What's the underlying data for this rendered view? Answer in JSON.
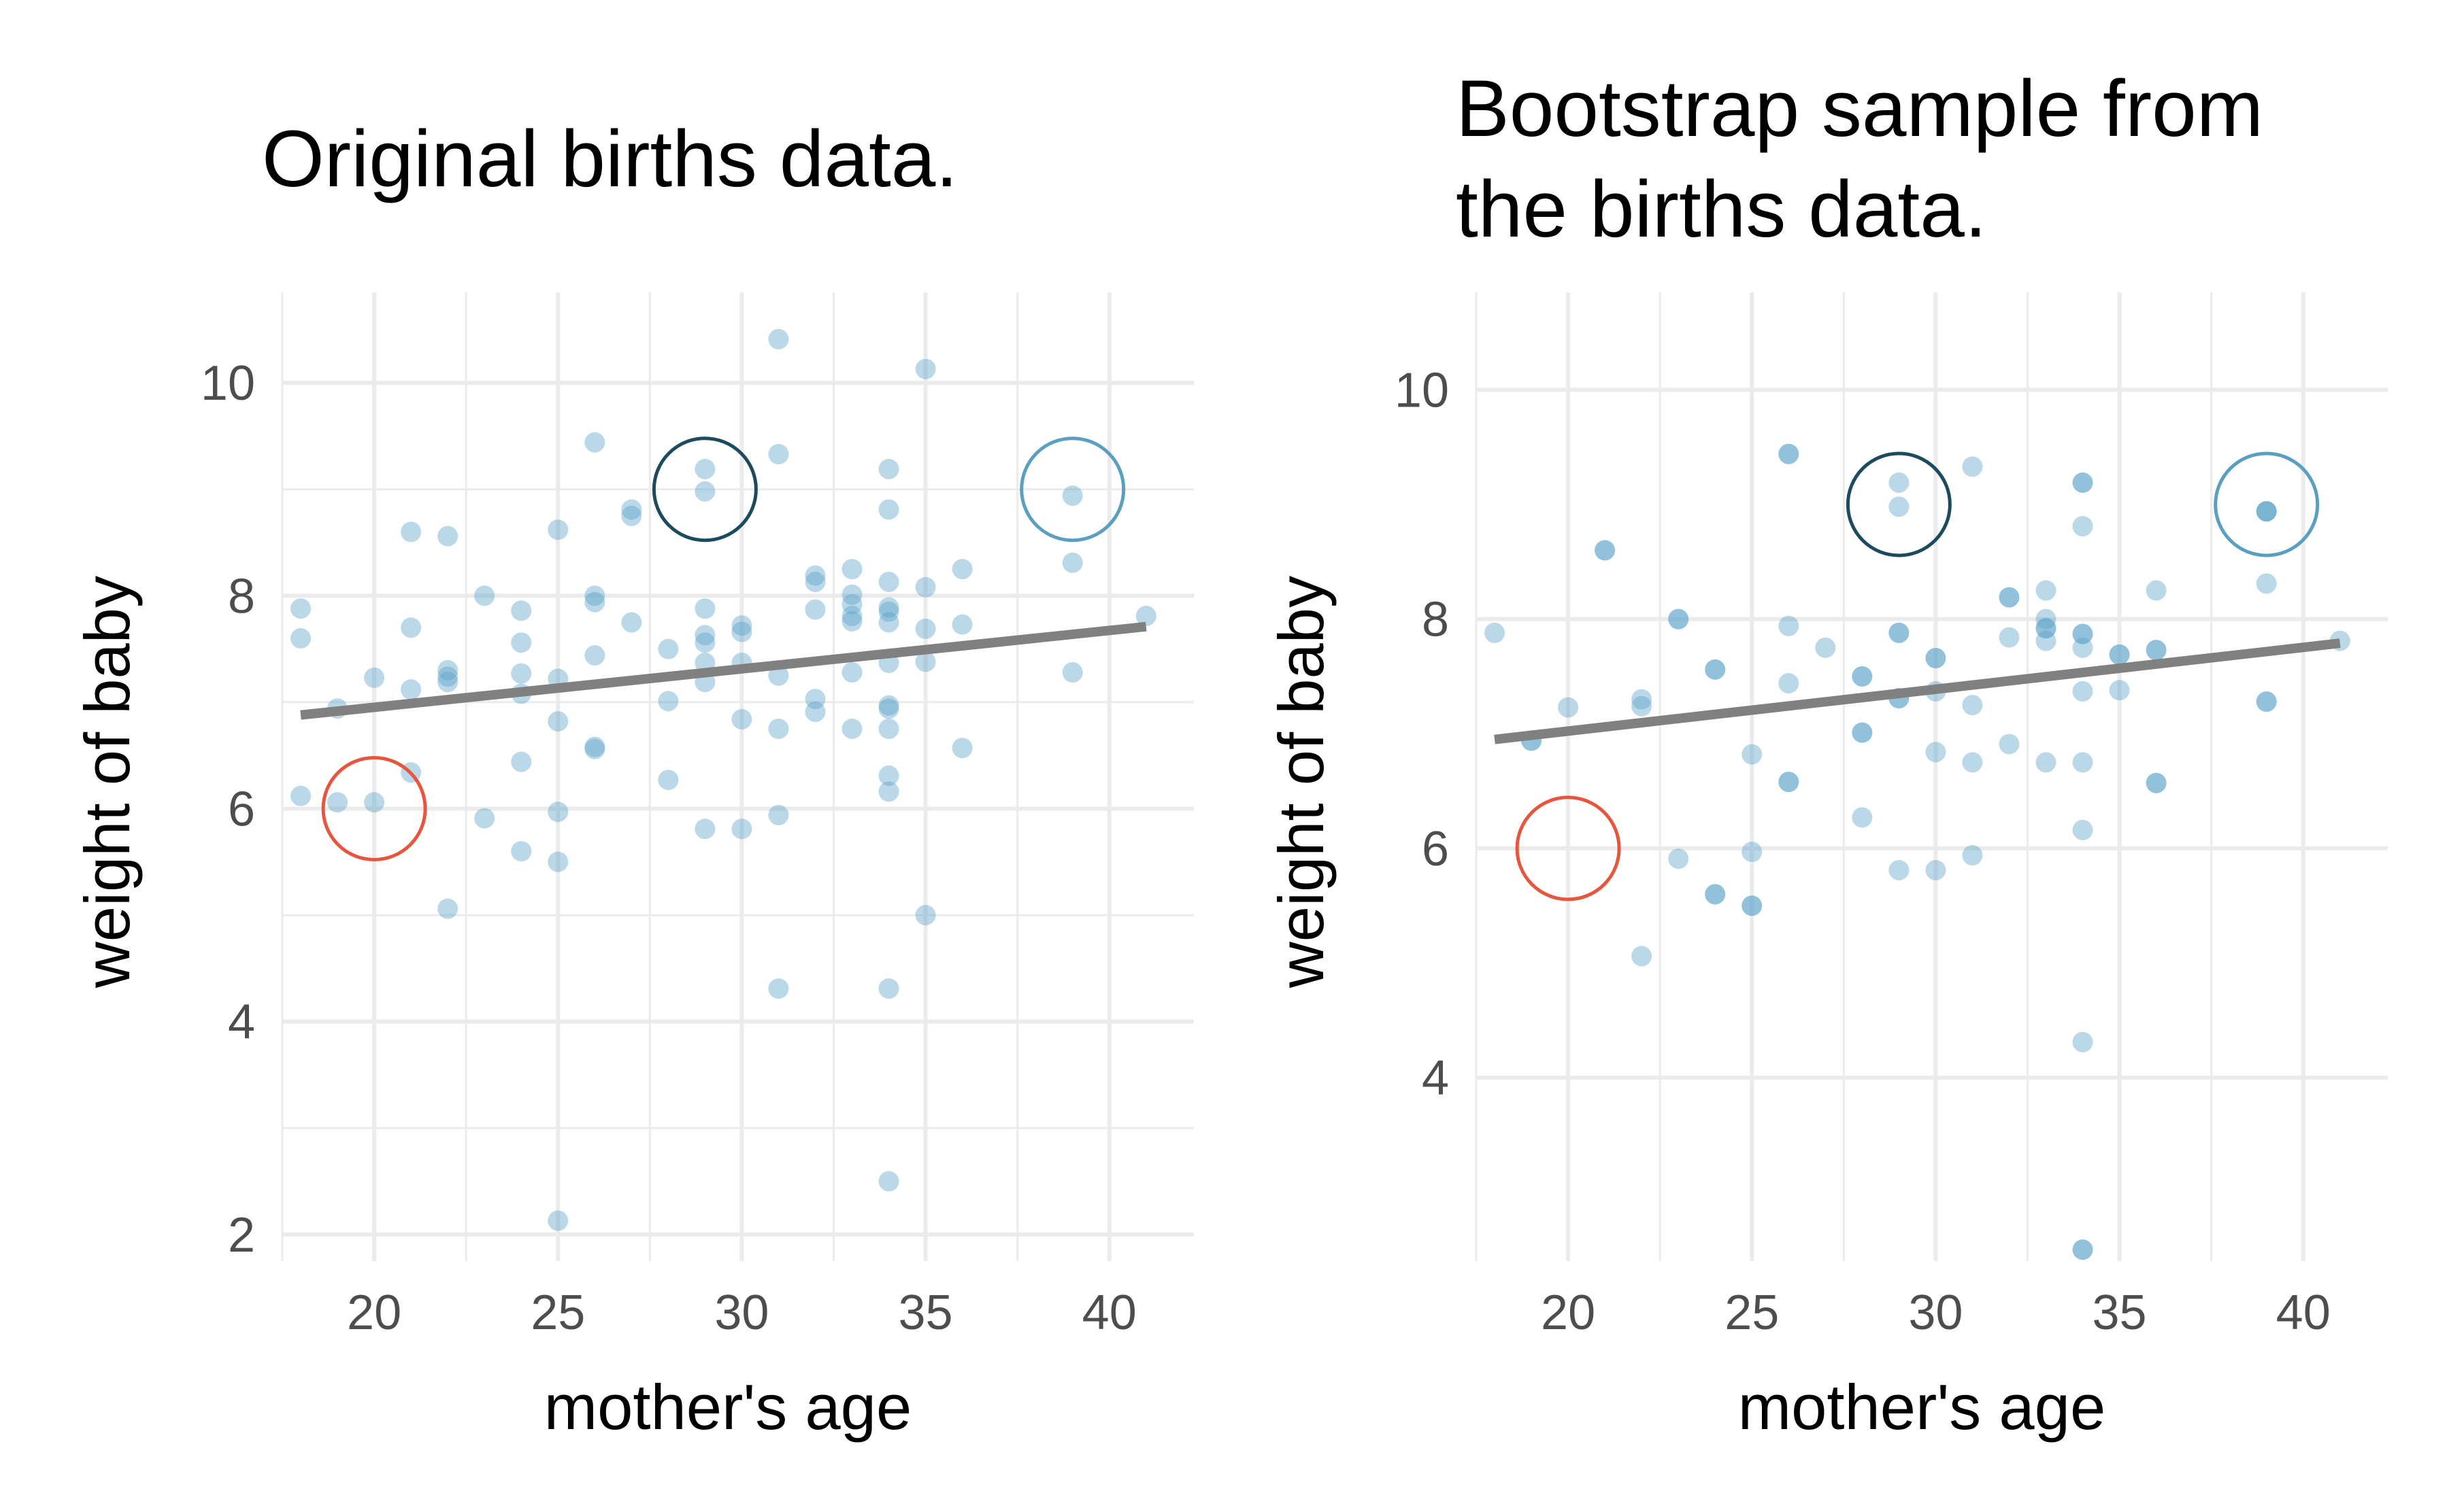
{
  "chart_data": [
    {
      "type": "scatter",
      "title": "Original births data.",
      "xlabel": "mother's age",
      "ylabel": "weight of baby",
      "xlim": [
        17.5,
        42.3
      ],
      "ylim": [
        1.75,
        10.85
      ],
      "xticks": [
        20,
        25,
        30,
        35,
        40
      ],
      "yticks": [
        2,
        4,
        6,
        8,
        10
      ],
      "grid": true,
      "legend": "none",
      "colors": {
        "points": "#5ba3c7",
        "fit_line": "#808080",
        "grid": "#ebebeb"
      },
      "points": [
        [
          18,
          7.88
        ],
        [
          18,
          7.6
        ],
        [
          18,
          6.12
        ],
        [
          19,
          6.94
        ],
        [
          19,
          6.06
        ],
        [
          20,
          7.23
        ],
        [
          20,
          6.06
        ],
        [
          21,
          8.6
        ],
        [
          21,
          7.7
        ],
        [
          21,
          7.12
        ],
        [
          21,
          6.34
        ],
        [
          22,
          8.56
        ],
        [
          22,
          7.3
        ],
        [
          22,
          7.24
        ],
        [
          22,
          7.19
        ],
        [
          22,
          5.06
        ],
        [
          23,
          8.0
        ],
        [
          23,
          5.91
        ],
        [
          24,
          7.86
        ],
        [
          24,
          7.56
        ],
        [
          24,
          7.27
        ],
        [
          24,
          7.08
        ],
        [
          24,
          6.44
        ],
        [
          24,
          5.6
        ],
        [
          25,
          8.62
        ],
        [
          25,
          7.22
        ],
        [
          25,
          6.82
        ],
        [
          25,
          5.97
        ],
        [
          25,
          5.5
        ],
        [
          25,
          2.13
        ],
        [
          26,
          9.44
        ],
        [
          26,
          8.0
        ],
        [
          26,
          7.94
        ],
        [
          26,
          7.44
        ],
        [
          26,
          6.58
        ],
        [
          26,
          6.56
        ],
        [
          27,
          8.81
        ],
        [
          27,
          8.75
        ],
        [
          27,
          7.75
        ],
        [
          28,
          7.5
        ],
        [
          28,
          7.01
        ],
        [
          28,
          6.27
        ],
        [
          29,
          9.19
        ],
        [
          29,
          8.98
        ],
        [
          29,
          7.88
        ],
        [
          29,
          7.63
        ],
        [
          29,
          7.56
        ],
        [
          29,
          7.37
        ],
        [
          29,
          7.19
        ],
        [
          29,
          5.81
        ],
        [
          30,
          7.72
        ],
        [
          30,
          7.66
        ],
        [
          30,
          7.37
        ],
        [
          30,
          6.84
        ],
        [
          30,
          5.81
        ],
        [
          31,
          10.41
        ],
        [
          31,
          9.33
        ],
        [
          31,
          7.25
        ],
        [
          31,
          6.75
        ],
        [
          31,
          5.94
        ],
        [
          31,
          4.31
        ],
        [
          32,
          8.19
        ],
        [
          32,
          8.13
        ],
        [
          32,
          7.87
        ],
        [
          32,
          7.03
        ],
        [
          32,
          6.91
        ],
        [
          33,
          8.25
        ],
        [
          33,
          8.01
        ],
        [
          33,
          7.92
        ],
        [
          33,
          7.81
        ],
        [
          33,
          7.76
        ],
        [
          33,
          7.28
        ],
        [
          33,
          6.75
        ],
        [
          34,
          9.19
        ],
        [
          34,
          8.81
        ],
        [
          34,
          8.13
        ],
        [
          34,
          7.89
        ],
        [
          34,
          7.85
        ],
        [
          34,
          7.75
        ],
        [
          34,
          7.37
        ],
        [
          34,
          6.97
        ],
        [
          34,
          6.94
        ],
        [
          34,
          6.75
        ],
        [
          34,
          6.31
        ],
        [
          34,
          6.16
        ],
        [
          34,
          4.31
        ],
        [
          34,
          2.5
        ],
        [
          35,
          10.13
        ],
        [
          35,
          8.08
        ],
        [
          35,
          7.69
        ],
        [
          35,
          7.38
        ],
        [
          35,
          5.0
        ],
        [
          36,
          8.25
        ],
        [
          36,
          7.73
        ],
        [
          36,
          6.57
        ],
        [
          39,
          8.94
        ],
        [
          39,
          8.31
        ],
        [
          39,
          7.28
        ],
        [
          41,
          7.81
        ]
      ],
      "fit_line": {
        "x": [
          18,
          41
        ],
        "y": [
          6.88,
          7.71
        ]
      },
      "highlight_circles": [
        {
          "x": 20,
          "y": 6.0,
          "color": "#e8553f"
        },
        {
          "x": 29,
          "y": 9.0,
          "color": "#1c4a5e"
        },
        {
          "x": 39,
          "y": 9.0,
          "color": "#5a9fbf"
        }
      ]
    },
    {
      "type": "scatter",
      "title": "Bootstrap sample from the births data.",
      "title_lines": [
        "Bootstrap sample from",
        "the births data."
      ],
      "xlabel": "mother's age",
      "ylabel": "weight of baby",
      "xlim": [
        17.5,
        42.3
      ],
      "ylim": [
        2.4,
        10.85
      ],
      "xticks": [
        20,
        25,
        30,
        35,
        40
      ],
      "yticks": [
        4,
        6,
        8,
        10
      ],
      "grid": true,
      "legend": "none",
      "colors": {
        "points": "#5ba3c7",
        "fit_line": "#808080",
        "grid": "#ebebeb"
      },
      "points": [
        [
          18,
          7.88
        ],
        [
          19,
          6.94
        ],
        [
          19,
          6.94
        ],
        [
          20,
          7.23
        ],
        [
          21,
          8.6
        ],
        [
          21,
          8.6
        ],
        [
          22,
          7.3
        ],
        [
          22,
          7.24
        ],
        [
          22,
          5.06
        ],
        [
          23,
          8.0
        ],
        [
          23,
          8.0
        ],
        [
          23,
          5.91
        ],
        [
          24,
          7.56
        ],
        [
          24,
          7.56
        ],
        [
          24,
          5.6
        ],
        [
          24,
          5.6
        ],
        [
          25,
          6.82
        ],
        [
          25,
          5.97
        ],
        [
          25,
          5.5
        ],
        [
          25,
          5.5
        ],
        [
          26,
          9.44
        ],
        [
          26,
          9.44
        ],
        [
          26,
          7.94
        ],
        [
          26,
          7.44
        ],
        [
          26,
          6.58
        ],
        [
          26,
          6.58
        ],
        [
          27,
          7.75
        ],
        [
          28,
          7.5
        ],
        [
          28,
          7.5
        ],
        [
          28,
          7.01
        ],
        [
          28,
          7.01
        ],
        [
          28,
          6.27
        ],
        [
          29,
          9.19
        ],
        [
          29,
          8.98
        ],
        [
          29,
          7.88
        ],
        [
          29,
          7.88
        ],
        [
          29,
          7.31
        ],
        [
          29,
          7.31
        ],
        [
          29,
          5.81
        ],
        [
          30,
          7.66
        ],
        [
          30,
          7.66
        ],
        [
          30,
          7.37
        ],
        [
          30,
          6.84
        ],
        [
          30,
          5.81
        ],
        [
          31,
          9.33
        ],
        [
          31,
          7.25
        ],
        [
          31,
          6.75
        ],
        [
          31,
          5.94
        ],
        [
          32,
          8.19
        ],
        [
          32,
          8.19
        ],
        [
          32,
          7.84
        ],
        [
          32,
          6.91
        ],
        [
          33,
          8.25
        ],
        [
          33,
          8.0
        ],
        [
          33,
          7.92
        ],
        [
          33,
          7.92
        ],
        [
          33,
          7.81
        ],
        [
          33,
          6.75
        ],
        [
          34,
          9.19
        ],
        [
          34,
          9.19
        ],
        [
          34,
          8.81
        ],
        [
          34,
          7.87
        ],
        [
          34,
          7.87
        ],
        [
          34,
          7.75
        ],
        [
          34,
          7.37
        ],
        [
          34,
          6.75
        ],
        [
          34,
          6.16
        ],
        [
          34,
          4.31
        ],
        [
          34,
          2.5
        ],
        [
          34,
          2.5
        ],
        [
          35,
          7.69
        ],
        [
          35,
          7.69
        ],
        [
          35,
          7.38
        ],
        [
          36,
          8.25
        ],
        [
          36,
          7.73
        ],
        [
          36,
          7.73
        ],
        [
          36,
          6.57
        ],
        [
          36,
          6.57
        ],
        [
          39,
          8.94
        ],
        [
          39,
          8.94
        ],
        [
          39,
          8.94
        ],
        [
          39,
          8.31
        ],
        [
          39,
          7.28
        ],
        [
          39,
          7.28
        ],
        [
          41,
          7.81
        ]
      ],
      "fit_line": {
        "x": [
          18,
          41
        ],
        "y": [
          6.95,
          7.79
        ]
      },
      "highlight_circles": [
        {
          "x": 20,
          "y": 6.0,
          "color": "#e8553f"
        },
        {
          "x": 29,
          "y": 9.0,
          "color": "#1c4a5e"
        },
        {
          "x": 39,
          "y": 9.0,
          "color": "#5a9fbf"
        }
      ]
    }
  ]
}
